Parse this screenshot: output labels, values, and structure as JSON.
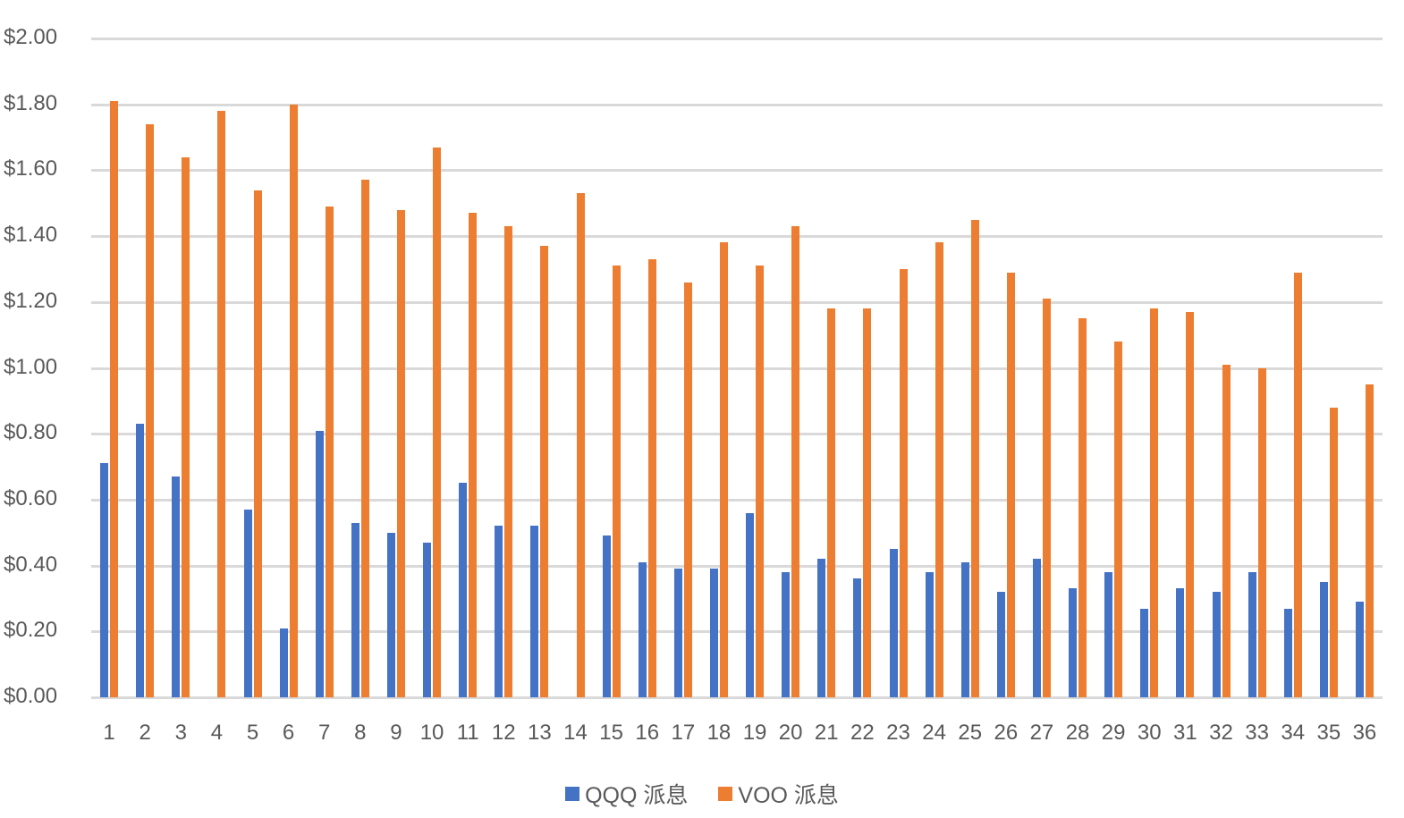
{
  "chart_data": {
    "type": "bar",
    "title": "",
    "xlabel": "",
    "ylabel": "",
    "ylim": [
      0,
      2.0
    ],
    "grid": true,
    "legend_position": "bottom",
    "y_ticks": [
      "$0.00",
      "$0.20",
      "$0.40",
      "$0.60",
      "$0.80",
      "$1.00",
      "$1.20",
      "$1.40",
      "$1.60",
      "$1.80",
      "$2.00"
    ],
    "categories": [
      "1",
      "2",
      "3",
      "4",
      "5",
      "6",
      "7",
      "8",
      "9",
      "10",
      "11",
      "12",
      "13",
      "14",
      "15",
      "16",
      "17",
      "18",
      "19",
      "20",
      "21",
      "22",
      "23",
      "24",
      "25",
      "26",
      "27",
      "28",
      "29",
      "30",
      "31",
      "32",
      "33",
      "34",
      "35",
      "36"
    ],
    "series": [
      {
        "name": "QQQ 派息",
        "color": "#4472c4",
        "values": [
          0.71,
          0.83,
          0.67,
          0,
          0.57,
          0.21,
          0.81,
          0.53,
          0.5,
          0.47,
          0.65,
          0.52,
          0.52,
          0,
          0.49,
          0.41,
          0.39,
          0.39,
          0.56,
          0.38,
          0.42,
          0.36,
          0.45,
          0.38,
          0.41,
          0.32,
          0.42,
          0.33,
          0.38,
          0.27,
          0.33,
          0.32,
          0.38,
          0.27,
          0.35,
          0.29
        ]
      },
      {
        "name": "VOO 派息",
        "color": "#ed7d31",
        "values": [
          1.81,
          1.74,
          1.64,
          1.78,
          1.54,
          1.8,
          1.49,
          1.57,
          1.48,
          1.67,
          1.47,
          1.43,
          1.37,
          1.53,
          1.31,
          1.33,
          1.26,
          1.38,
          1.31,
          1.43,
          1.18,
          1.18,
          1.3,
          1.38,
          1.45,
          1.29,
          1.21,
          1.15,
          1.08,
          1.18,
          1.17,
          1.01,
          1.0,
          1.29,
          0.88,
          0.95
        ]
      }
    ]
  },
  "legend": {
    "items": [
      {
        "label": "QQQ 派息",
        "color": "#4472c4"
      },
      {
        "label": "VOO 派息",
        "color": "#ed7d31"
      }
    ]
  }
}
